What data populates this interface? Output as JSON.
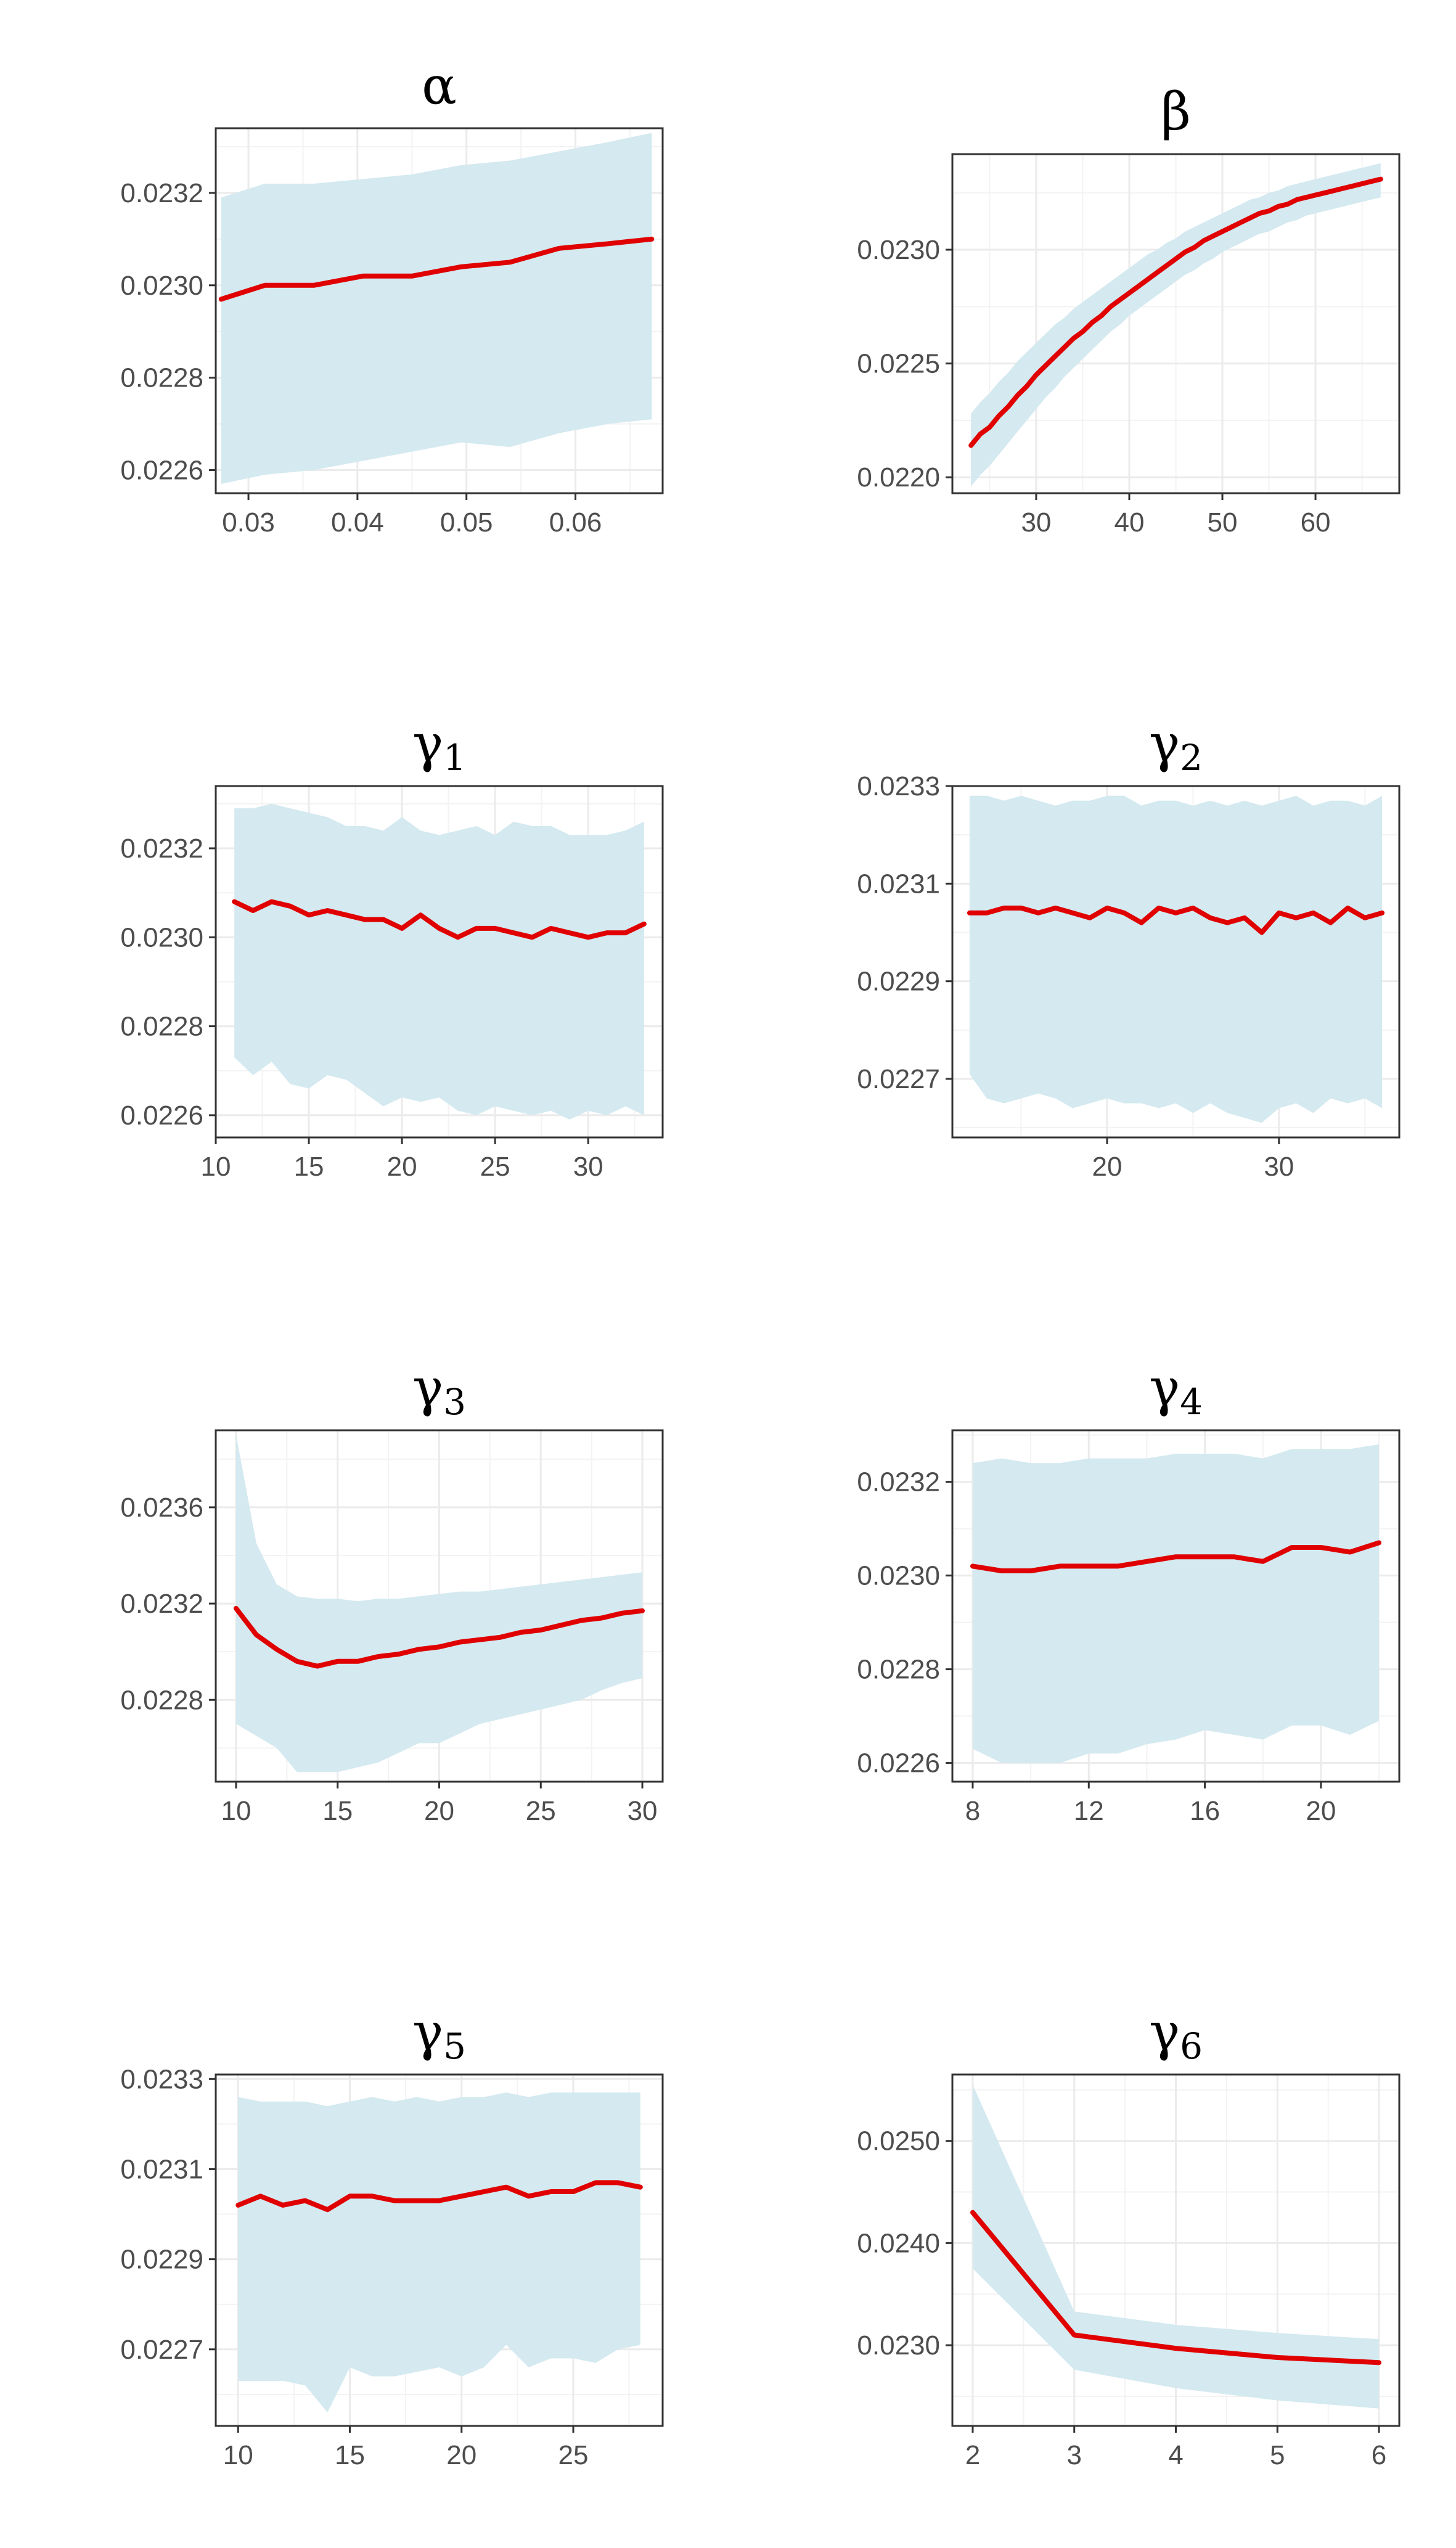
{
  "figure": {
    "colors": {
      "band": "#d4e9f0",
      "line": "#e00000",
      "grid": "#ebebeb",
      "border": "#333333",
      "tick_text": "#4d4d4d"
    }
  },
  "chart_data": [
    {
      "type": "line",
      "title": "α",
      "title_sub": "",
      "xlim": [
        0.027,
        0.068
      ],
      "ylim": [
        0.02255,
        0.02334
      ],
      "xticks": [
        {
          "v": 0.03,
          "label": "0.03"
        },
        {
          "v": 0.04,
          "label": "0.04"
        },
        {
          "v": 0.05,
          "label": "0.05"
        },
        {
          "v": 0.06,
          "label": "0.06"
        }
      ],
      "yticks": [
        {
          "v": 0.0226,
          "label": "0.0226"
        },
        {
          "v": 0.0228,
          "label": "0.0228"
        },
        {
          "v": 0.023,
          "label": "0.0230"
        },
        {
          "v": 0.0232,
          "label": "0.0232"
        }
      ],
      "x": [
        0.0275,
        0.0315,
        0.036,
        0.0405,
        0.045,
        0.0495,
        0.054,
        0.0585,
        0.063,
        0.067
      ],
      "y": [
        0.02297,
        0.023,
        0.023,
        0.02302,
        0.02302,
        0.02304,
        0.02305,
        0.02308,
        0.02309,
        0.0231
      ],
      "lower": [
        0.02257,
        0.02259,
        0.0226,
        0.02262,
        0.02264,
        0.02266,
        0.02265,
        0.02268,
        0.0227,
        0.02271
      ],
      "upper": [
        0.02319,
        0.02322,
        0.02322,
        0.02323,
        0.02324,
        0.02326,
        0.02327,
        0.02329,
        0.02331,
        0.02333
      ]
    },
    {
      "type": "line",
      "title": "β",
      "title_sub": "",
      "xlim": [
        21,
        69
      ],
      "ylim": [
        0.02193,
        0.02342
      ],
      "xticks": [
        {
          "v": 30,
          "label": "30"
        },
        {
          "v": 40,
          "label": "40"
        },
        {
          "v": 50,
          "label": "50"
        },
        {
          "v": 60,
          "label": "60"
        }
      ],
      "yticks": [
        {
          "v": 0.022,
          "label": "0.0220"
        },
        {
          "v": 0.0225,
          "label": "0.0225"
        },
        {
          "v": 0.023,
          "label": "0.0230"
        }
      ],
      "x": [
        23,
        24,
        25,
        26,
        27,
        28,
        29,
        30,
        31,
        32,
        33,
        34,
        35,
        36,
        37,
        38,
        39,
        40,
        41,
        42,
        43,
        44,
        45,
        46,
        47,
        48,
        49,
        50,
        51,
        52,
        53,
        54,
        55,
        56,
        57,
        58,
        59,
        60,
        61,
        62,
        63,
        64,
        65,
        66,
        67
      ],
      "y": [
        0.02214,
        0.02219,
        0.02222,
        0.02227,
        0.02231,
        0.02236,
        0.0224,
        0.02245,
        0.02249,
        0.02253,
        0.02257,
        0.02261,
        0.02264,
        0.02268,
        0.02271,
        0.02275,
        0.02278,
        0.02281,
        0.02284,
        0.02287,
        0.0229,
        0.02293,
        0.02296,
        0.02299,
        0.02301,
        0.02304,
        0.02306,
        0.02308,
        0.0231,
        0.02312,
        0.02314,
        0.02316,
        0.02317,
        0.02319,
        0.0232,
        0.02322,
        0.02323,
        0.02324,
        0.02325,
        0.02326,
        0.02327,
        0.02328,
        0.02329,
        0.0233,
        0.02331
      ],
      "lower": [
        0.02196,
        0.02201,
        0.02205,
        0.0221,
        0.02215,
        0.0222,
        0.02225,
        0.0223,
        0.02235,
        0.02239,
        0.02244,
        0.02248,
        0.02252,
        0.02256,
        0.0226,
        0.02264,
        0.02267,
        0.02271,
        0.02274,
        0.02277,
        0.0228,
        0.02283,
        0.02286,
        0.02289,
        0.02291,
        0.02294,
        0.02296,
        0.02299,
        0.02301,
        0.02303,
        0.02305,
        0.02307,
        0.02308,
        0.0231,
        0.02312,
        0.02313,
        0.02315,
        0.02316,
        0.02317,
        0.02318,
        0.02319,
        0.0232,
        0.02321,
        0.02322,
        0.02323
      ],
      "upper": [
        0.02228,
        0.02233,
        0.02237,
        0.02242,
        0.02246,
        0.02251,
        0.02255,
        0.02259,
        0.02263,
        0.02267,
        0.0227,
        0.02274,
        0.02277,
        0.0228,
        0.02283,
        0.02286,
        0.02289,
        0.02292,
        0.02295,
        0.02298,
        0.023,
        0.02303,
        0.02305,
        0.02308,
        0.0231,
        0.02312,
        0.02314,
        0.02316,
        0.02318,
        0.0232,
        0.02322,
        0.02323,
        0.02325,
        0.02326,
        0.02328,
        0.02329,
        0.0233,
        0.02331,
        0.02332,
        0.02333,
        0.02334,
        0.02335,
        0.02336,
        0.02337,
        0.02338
      ]
    },
    {
      "type": "line",
      "title": "γ",
      "title_sub": "1",
      "xlim": [
        10,
        34
      ],
      "ylim": [
        0.02255,
        0.02334
      ],
      "xticks": [
        {
          "v": 10,
          "label": "10"
        },
        {
          "v": 15,
          "label": "15"
        },
        {
          "v": 20,
          "label": "20"
        },
        {
          "v": 25,
          "label": "25"
        },
        {
          "v": 30,
          "label": "30"
        }
      ],
      "yticks": [
        {
          "v": 0.0226,
          "label": "0.0226"
        },
        {
          "v": 0.0228,
          "label": "0.0228"
        },
        {
          "v": 0.023,
          "label": "0.0230"
        },
        {
          "v": 0.0232,
          "label": "0.0232"
        }
      ],
      "x": [
        11,
        12,
        13,
        14,
        15,
        16,
        17,
        18,
        19,
        20,
        21,
        22,
        23,
        24,
        25,
        26,
        27,
        28,
        29,
        30,
        31,
        32,
        33
      ],
      "y": [
        0.02308,
        0.02306,
        0.02308,
        0.02307,
        0.02305,
        0.02306,
        0.02305,
        0.02304,
        0.02304,
        0.02302,
        0.02305,
        0.02302,
        0.023,
        0.02302,
        0.02302,
        0.02301,
        0.023,
        0.02302,
        0.02301,
        0.023,
        0.02301,
        0.02301,
        0.02303
      ],
      "lower": [
        0.02273,
        0.02269,
        0.02272,
        0.02267,
        0.02266,
        0.02269,
        0.02268,
        0.02265,
        0.02262,
        0.02264,
        0.02263,
        0.02264,
        0.02261,
        0.0226,
        0.02262,
        0.02261,
        0.0226,
        0.02261,
        0.02259,
        0.02261,
        0.0226,
        0.02262,
        0.0226
      ],
      "upper": [
        0.02329,
        0.02329,
        0.0233,
        0.02329,
        0.02328,
        0.02327,
        0.02325,
        0.02325,
        0.02324,
        0.02327,
        0.02324,
        0.02323,
        0.02324,
        0.02325,
        0.02323,
        0.02326,
        0.02325,
        0.02325,
        0.02323,
        0.02323,
        0.02323,
        0.02324,
        0.02326
      ]
    },
    {
      "type": "line",
      "title": "γ",
      "title_sub": "2",
      "xlim": [
        11,
        37
      ],
      "ylim": [
        0.02258,
        0.0233
      ],
      "xticks": [
        {
          "v": 20,
          "label": "20"
        },
        {
          "v": 30,
          "label": "30"
        }
      ],
      "yticks": [
        {
          "v": 0.0227,
          "label": "0.0227"
        },
        {
          "v": 0.0229,
          "label": "0.0229"
        },
        {
          "v": 0.0231,
          "label": "0.0231"
        },
        {
          "v": 0.0233,
          "label": "0.0233"
        }
      ],
      "x": [
        12,
        13,
        14,
        15,
        16,
        17,
        18,
        19,
        20,
        21,
        22,
        23,
        24,
        25,
        26,
        27,
        28,
        29,
        30,
        31,
        32,
        33,
        34,
        35,
        36
      ],
      "y": [
        0.02304,
        0.02304,
        0.02305,
        0.02305,
        0.02304,
        0.02305,
        0.02304,
        0.02303,
        0.02305,
        0.02304,
        0.02302,
        0.02305,
        0.02304,
        0.02305,
        0.02303,
        0.02302,
        0.02303,
        0.023,
        0.02304,
        0.02303,
        0.02304,
        0.02302,
        0.02305,
        0.02303,
        0.02304
      ],
      "lower": [
        0.02271,
        0.02266,
        0.02265,
        0.02266,
        0.02267,
        0.02266,
        0.02264,
        0.02265,
        0.02266,
        0.02265,
        0.02265,
        0.02264,
        0.02265,
        0.02263,
        0.02265,
        0.02263,
        0.02262,
        0.02261,
        0.02264,
        0.02265,
        0.02263,
        0.02266,
        0.02265,
        0.02266,
        0.02264
      ],
      "upper": [
        0.02328,
        0.02328,
        0.02327,
        0.02328,
        0.02327,
        0.02326,
        0.02327,
        0.02327,
        0.02328,
        0.02328,
        0.02326,
        0.02327,
        0.02327,
        0.02326,
        0.02327,
        0.02326,
        0.02327,
        0.02326,
        0.02327,
        0.02328,
        0.02326,
        0.02327,
        0.02327,
        0.02326,
        0.02328
      ]
    },
    {
      "type": "line",
      "title": "γ",
      "title_sub": "3",
      "xlim": [
        9,
        31
      ],
      "ylim": [
        0.02246,
        0.02392
      ],
      "xticks": [
        {
          "v": 10,
          "label": "10"
        },
        {
          "v": 15,
          "label": "15"
        },
        {
          "v": 20,
          "label": "20"
        },
        {
          "v": 25,
          "label": "25"
        },
        {
          "v": 30,
          "label": "30"
        }
      ],
      "yticks": [
        {
          "v": 0.0228,
          "label": "0.0228"
        },
        {
          "v": 0.0232,
          "label": "0.0232"
        },
        {
          "v": 0.0236,
          "label": "0.0236"
        }
      ],
      "x": [
        10,
        11,
        12,
        13,
        14,
        15,
        16,
        17,
        18,
        19,
        20,
        21,
        22,
        23,
        24,
        25,
        26,
        27,
        28,
        29,
        30
      ],
      "y": [
        0.02318,
        0.02307,
        0.02301,
        0.02296,
        0.02294,
        0.02296,
        0.02296,
        0.02298,
        0.02299,
        0.02301,
        0.02302,
        0.02304,
        0.02305,
        0.02306,
        0.02308,
        0.02309,
        0.02311,
        0.02313,
        0.02314,
        0.02316,
        0.02317
      ],
      "lower": [
        0.0227,
        0.02265,
        0.0226,
        0.0225,
        0.0225,
        0.0225,
        0.02252,
        0.02254,
        0.02258,
        0.02262,
        0.02262,
        0.02266,
        0.0227,
        0.02272,
        0.02274,
        0.02276,
        0.02278,
        0.0228,
        0.02284,
        0.02287,
        0.02289
      ],
      "upper": [
        0.0239,
        0.02345,
        0.02328,
        0.02323,
        0.02322,
        0.02322,
        0.02321,
        0.02322,
        0.02322,
        0.02323,
        0.02324,
        0.02325,
        0.02325,
        0.02326,
        0.02327,
        0.02328,
        0.02329,
        0.0233,
        0.02331,
        0.02332,
        0.02333
      ]
    },
    {
      "type": "line",
      "title": "γ",
      "title_sub": "4",
      "xlim": [
        7.3,
        22.7
      ],
      "ylim": [
        0.02256,
        0.02331
      ],
      "xticks": [
        {
          "v": 8,
          "label": "8"
        },
        {
          "v": 12,
          "label": "12"
        },
        {
          "v": 16,
          "label": "16"
        },
        {
          "v": 20,
          "label": "20"
        }
      ],
      "yticks": [
        {
          "v": 0.0226,
          "label": "0.0226"
        },
        {
          "v": 0.0228,
          "label": "0.0228"
        },
        {
          "v": 0.023,
          "label": "0.0230"
        },
        {
          "v": 0.0232,
          "label": "0.0232"
        }
      ],
      "x": [
        8,
        9,
        10,
        11,
        12,
        13,
        14,
        15,
        16,
        17,
        18,
        19,
        20,
        21,
        22
      ],
      "y": [
        0.02302,
        0.02301,
        0.02301,
        0.02302,
        0.02302,
        0.02302,
        0.02303,
        0.02304,
        0.02304,
        0.02304,
        0.02303,
        0.02306,
        0.02306,
        0.02305,
        0.02307
      ],
      "lower": [
        0.02263,
        0.0226,
        0.0226,
        0.0226,
        0.02262,
        0.02262,
        0.02264,
        0.02265,
        0.02267,
        0.02266,
        0.02265,
        0.02268,
        0.02268,
        0.02266,
        0.02269
      ],
      "upper": [
        0.02324,
        0.02325,
        0.02324,
        0.02324,
        0.02325,
        0.02325,
        0.02325,
        0.02326,
        0.02326,
        0.02326,
        0.02325,
        0.02327,
        0.02327,
        0.02327,
        0.02328
      ]
    },
    {
      "type": "line",
      "title": "γ",
      "title_sub": "5",
      "xlim": [
        9,
        29
      ],
      "ylim": [
        0.02253,
        0.02331
      ],
      "xticks": [
        {
          "v": 10,
          "label": "10"
        },
        {
          "v": 15,
          "label": "15"
        },
        {
          "v": 20,
          "label": "20"
        },
        {
          "v": 25,
          "label": "25"
        }
      ],
      "yticks": [
        {
          "v": 0.0227,
          "label": "0.0227"
        },
        {
          "v": 0.0229,
          "label": "0.0229"
        },
        {
          "v": 0.0231,
          "label": "0.0231"
        },
        {
          "v": 0.0233,
          "label": "0.0233"
        }
      ],
      "x": [
        10,
        11,
        12,
        13,
        14,
        15,
        16,
        17,
        18,
        19,
        20,
        21,
        22,
        23,
        24,
        25,
        26,
        27,
        28
      ],
      "y": [
        0.02302,
        0.02304,
        0.02302,
        0.02303,
        0.02301,
        0.02304,
        0.02304,
        0.02303,
        0.02303,
        0.02303,
        0.02304,
        0.02305,
        0.02306,
        0.02304,
        0.02305,
        0.02305,
        0.02307,
        0.02307,
        0.02306
      ],
      "lower": [
        0.02263,
        0.02263,
        0.02263,
        0.02262,
        0.02256,
        0.02266,
        0.02264,
        0.02264,
        0.02265,
        0.02266,
        0.02264,
        0.02266,
        0.02271,
        0.02266,
        0.02268,
        0.02268,
        0.02267,
        0.0227,
        0.02271
      ],
      "upper": [
        0.02326,
        0.02325,
        0.02325,
        0.02325,
        0.02324,
        0.02325,
        0.02326,
        0.02325,
        0.02326,
        0.02325,
        0.02326,
        0.02326,
        0.02327,
        0.02326,
        0.02327,
        0.02327,
        0.02327,
        0.02327,
        0.02327
      ]
    },
    {
      "type": "line",
      "title": "γ",
      "title_sub": "6",
      "xlim": [
        1.8,
        6.2
      ],
      "ylim": [
        0.02221,
        0.02565
      ],
      "xticks": [
        {
          "v": 2,
          "label": "2"
        },
        {
          "v": 3,
          "label": "3"
        },
        {
          "v": 4,
          "label": "4"
        },
        {
          "v": 5,
          "label": "5"
        },
        {
          "v": 6,
          "label": "6"
        }
      ],
      "yticks": [
        {
          "v": 0.023,
          "label": "0.0230"
        },
        {
          "v": 0.024,
          "label": "0.0240"
        },
        {
          "v": 0.025,
          "label": "0.0250"
        }
      ],
      "x": [
        2,
        3,
        4,
        5,
        6
      ],
      "y": [
        0.0243,
        0.0231,
        0.02297,
        0.02288,
        0.02283
      ],
      "lower": [
        0.02375,
        0.02276,
        0.02258,
        0.02246,
        0.02238
      ],
      "upper": [
        0.02555,
        0.02333,
        0.0232,
        0.02312,
        0.02306
      ]
    }
  ]
}
